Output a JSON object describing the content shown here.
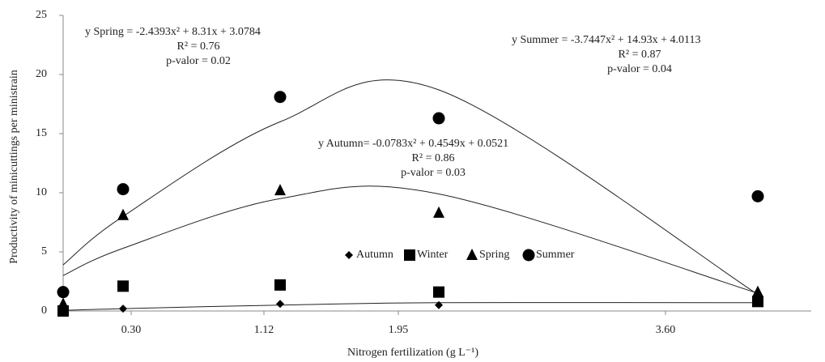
{
  "chart_data": {
    "type": "scatter",
    "x_label": "Nitrogen fertilization (g L⁻¹)",
    "y_label": "Productivity of minicuttings per ministrain",
    "x": [
      -0.12,
      0.25,
      1.22,
      2.2,
      4.17
    ],
    "xlim": [
      -0.12,
      4.5
    ],
    "xticks": [
      {
        "value": 0.3,
        "label": "0.30"
      },
      1.12,
      1.95,
      {
        "value": 3.6,
        "label": "3.60"
      }
    ],
    "ylim": [
      0,
      25
    ],
    "yticks": [
      0,
      5,
      10,
      15,
      20,
      25
    ],
    "grid": false,
    "legend": "center",
    "series": [
      {
        "name": "Autumn",
        "marker": "diamond",
        "color": "#000000",
        "values": [
          0.05,
          0.2,
          0.6,
          0.5,
          0.8
        ],
        "trend": [
          0.05,
          0.2,
          0.5,
          0.7,
          0.7
        ]
      },
      {
        "name": "Winter",
        "marker": "square",
        "color": "#000000",
        "values": [
          0,
          2.1,
          2.2,
          1.6,
          0.8
        ]
      },
      {
        "name": "Spring",
        "marker": "triangle",
        "color": "#000000",
        "values": [
          0.6,
          8.1,
          10.2,
          8.3,
          1.6
        ],
        "trend": [
          3,
          5.3,
          9.5,
          9.9,
          1.5
        ]
      },
      {
        "name": "Summer",
        "marker": "circle",
        "color": "#000000",
        "values": [
          1.6,
          10.3,
          18.1,
          16.3,
          9.7
        ],
        "trend": [
          3.9,
          8,
          16,
          18.7,
          1.4
        ]
      }
    ],
    "annotations": [
      [
        "y  Spring = -2.4393x² + 8.31x + 3.0784",
        "R² = 0.76",
        "p-valor = 0.02"
      ],
      [
        "y Summer = -3.7447x² + 14.93x + 4.0113",
        "R² = 0.87",
        "p-valor = 0.04"
      ],
      [
        "y  Autumn= -0.0783x² + 0.4549x + 0.0521",
        "R² = 0.86",
        "p-valor  = 0.03"
      ]
    ]
  }
}
